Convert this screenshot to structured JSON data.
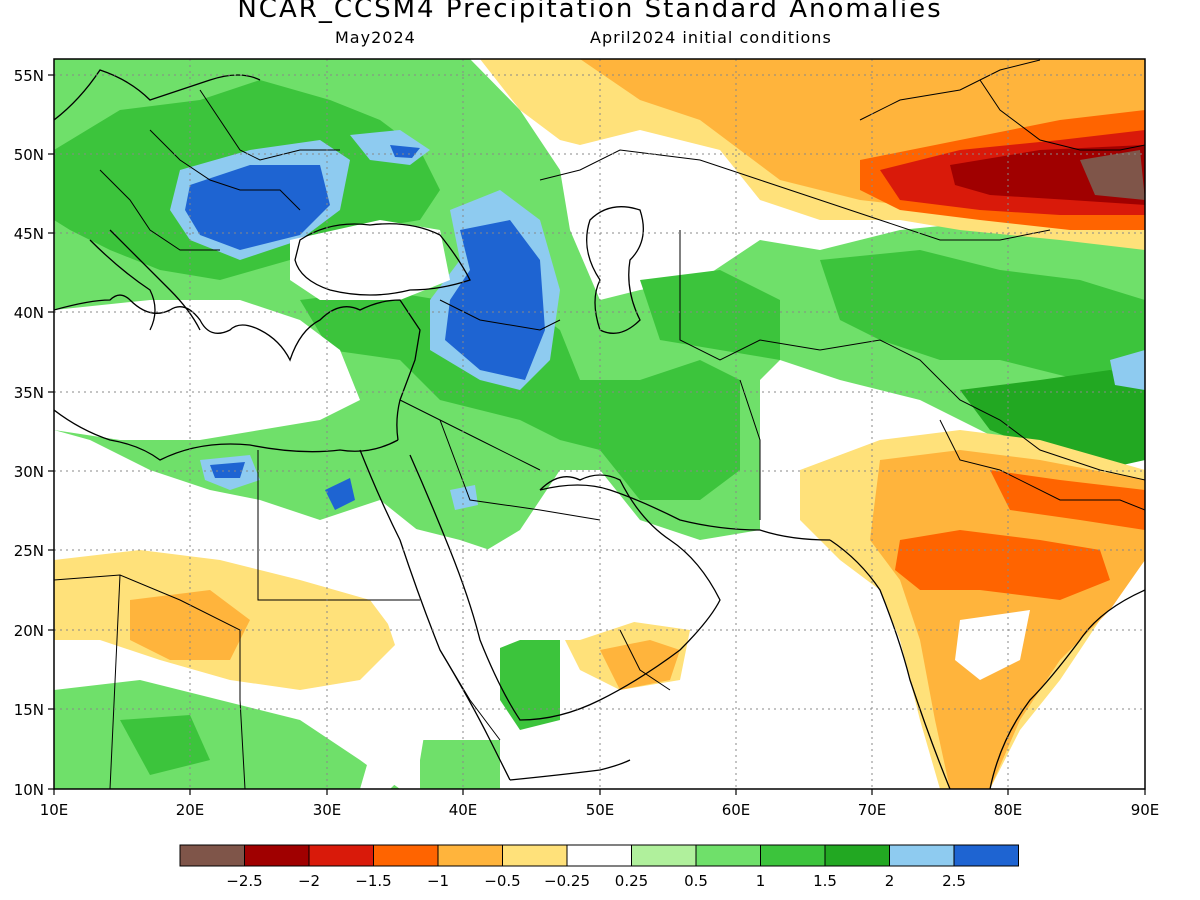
{
  "title": "NCAR_CCSM4 Precipitation Standard Anomalies",
  "valid_month": "May2024",
  "init_conditions": "April2024 initial conditions",
  "map": {
    "lon_range": [
      10,
      90
    ],
    "lat_range": [
      10,
      56
    ],
    "x_tick_labels": [
      "10E",
      "20E",
      "30E",
      "40E",
      "50E",
      "60E",
      "70E",
      "80E",
      "90E"
    ],
    "y_tick_labels": [
      "55N",
      "50N",
      "45N",
      "40N",
      "35N",
      "30N",
      "25N",
      "20N",
      "15N",
      "10N"
    ],
    "gridlines": "dotted"
  },
  "colorbar": {
    "colors": [
      "#7f5549",
      "#a00000",
      "#d91a0a",
      "#ff6400",
      "#ffb43c",
      "#ffe17a",
      "#ffffff",
      "#b0f09c",
      "#6fe06a",
      "#3cc43c",
      "#22a822",
      "#8ecbf0",
      "#1e64d2"
    ],
    "tick_labels": [
      "−2.5",
      "−2",
      "−1.5",
      "−1",
      "−0.5",
      "−0.25",
      "0.25",
      "0.5",
      "1",
      "1.5",
      "2",
      "2.5"
    ]
  },
  "regions": [
    {
      "name": "balkans-romania-blue",
      "color": "#1e64d2"
    },
    {
      "name": "anatolia-caucasus-blue",
      "color": "#1e64d2"
    },
    {
      "name": "central-asia-brown-max",
      "color": "#7f5549"
    },
    {
      "name": "india-orange",
      "color": "#ff6400"
    },
    {
      "name": "tibet-dark-green",
      "color": "#22a822"
    }
  ]
}
